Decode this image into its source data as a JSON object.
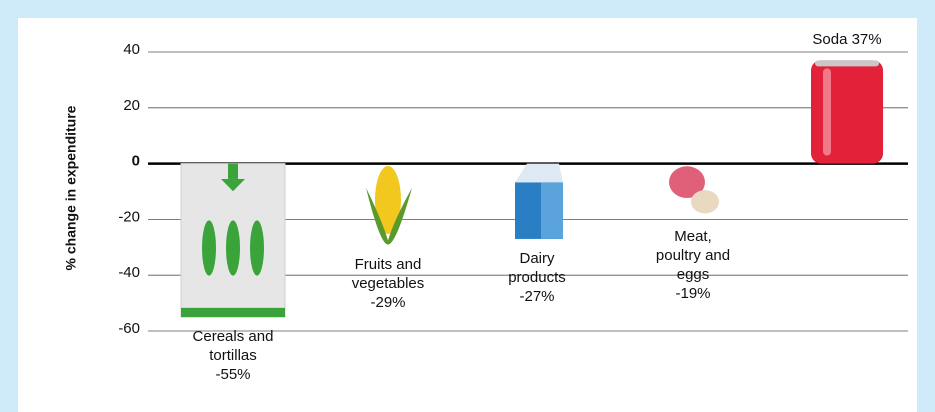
{
  "chart_data": {
    "type": "pictogram",
    "y_label": "% change in expenditure",
    "categories": [
      "Cereals and tortillas",
      "Fruits and vegetables",
      "Dairy products",
      "Meat, poultry and eggs",
      "Soda"
    ],
    "values": [
      -55,
      -29,
      -27,
      -19,
      37
    ],
    "value_labels": [
      "-55%",
      "-29%",
      "-27%",
      "-19%",
      "37%"
    ],
    "colors": [
      "#3aa43a",
      "#f2c81e",
      "#2a7fc4",
      "#e0607a",
      "#e3223a"
    ],
    "ylim": [
      -60,
      40
    ],
    "yticks": [
      -60,
      -40,
      -20,
      0,
      20,
      40
    ],
    "grid": true
  }
}
